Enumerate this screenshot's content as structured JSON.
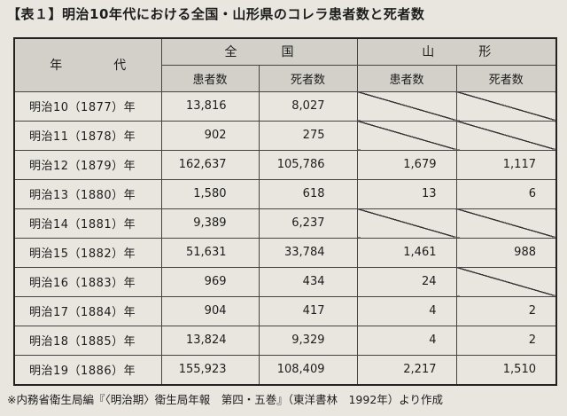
{
  "title": "【表１】明治10年代における全国・山形県のコレラ患者数と死者数",
  "header": {
    "year": "年　代",
    "national": "全　国",
    "yamagata": "山　形",
    "patients": "患者数",
    "deaths": "死者数",
    "deaths_yamagata": "死者数"
  },
  "rows": [
    {
      "era": "明治10（1877）年",
      "nat_patients": "13,816",
      "nat_deaths": "8,027",
      "yam_patients": "",
      "yam_deaths": "",
      "yam_patients_blank": true,
      "yam_deaths_blank": true
    },
    {
      "era": "明治11（1878）年",
      "nat_patients": "902",
      "nat_deaths": "275",
      "yam_patients": "",
      "yam_deaths": "",
      "yam_patients_blank": true,
      "yam_deaths_blank": true
    },
    {
      "era": "明治12（1879）年",
      "nat_patients": "162,637",
      "nat_deaths": "105,786",
      "yam_patients": "1,679",
      "yam_deaths": "1,117",
      "yam_patients_blank": false,
      "yam_deaths_blank": false
    },
    {
      "era": "明治13（1880）年",
      "nat_patients": "1,580",
      "nat_deaths": "618",
      "yam_patients": "13",
      "yam_deaths": "6",
      "yam_patients_blank": false,
      "yam_deaths_blank": false
    },
    {
      "era": "明治14（1881）年",
      "nat_patients": "9,389",
      "nat_deaths": "6,237",
      "yam_patients": "",
      "yam_deaths": "",
      "yam_patients_blank": true,
      "yam_deaths_blank": true
    },
    {
      "era": "明治15（1882）年",
      "nat_patients": "51,631",
      "nat_deaths": "33,784",
      "yam_patients": "1,461",
      "yam_deaths": "988",
      "yam_patients_blank": false,
      "yam_deaths_blank": false
    },
    {
      "era": "明治16（1883）年",
      "nat_patients": "969",
      "nat_deaths": "434",
      "yam_patients": "24",
      "yam_deaths": "",
      "yam_patients_blank": false,
      "yam_deaths_blank": true
    },
    {
      "era": "明治17（1884）年",
      "nat_patients": "904",
      "nat_deaths": "417",
      "yam_patients": "4",
      "yam_deaths": "2",
      "yam_patients_blank": false,
      "yam_deaths_blank": false
    },
    {
      "era": "明治18（1885）年",
      "nat_patients": "13,824",
      "nat_deaths": "9,329",
      "yam_patients": "4",
      "yam_deaths": "2",
      "yam_patients_blank": false,
      "yam_deaths_blank": false
    },
    {
      "era": "明治19（1886）年",
      "nat_patients": "155,923",
      "nat_deaths": "108,409",
      "yam_patients": "2,217",
      "yam_deaths": "1,510",
      "yam_patients_blank": false,
      "yam_deaths_blank": false
    }
  ],
  "note": "※内務省衛生局編『〈明治期〉衛生局年報　第四・五巻』（東洋書林　1992年）より作成"
}
